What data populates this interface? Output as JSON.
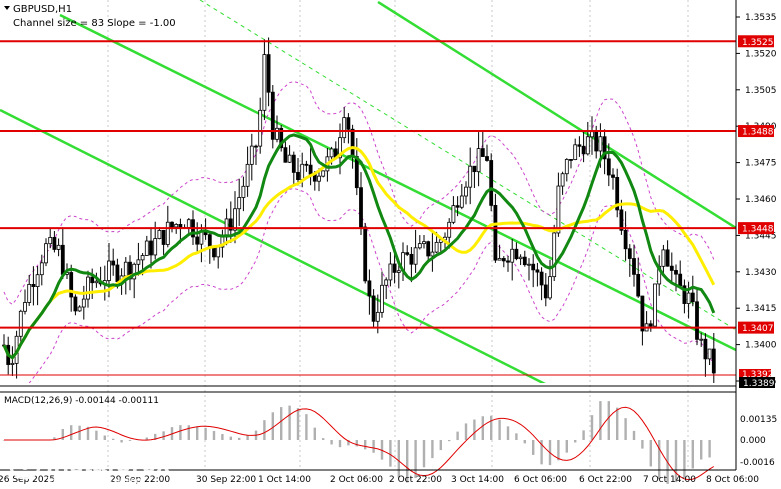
{
  "header": {
    "symbol": "GBPUSD,H1",
    "channel_info": "Channel size = 83 Slope = -1.00"
  },
  "chart_data": {
    "type": "candlestick",
    "symbol": "GBPUSD",
    "timeframe": "H1",
    "price_range": [
      1.3378,
      1.3545
    ],
    "price_ticks": [
      1.3535,
      1.352,
      1.3505,
      1.349,
      1.3475,
      1.346,
      1.3445,
      1.343,
      1.3415,
      1.34,
      1.3385
    ],
    "time_ticks": [
      "26 Sep 2025",
      "29 Sep 22:00",
      "30 Sep 22:00",
      "1 Oct 14:00",
      "2 Oct 06:00",
      "2 Oct 22:00",
      "3 Oct 14:00",
      "6 Oct 06:00",
      "6 Oct 22:00",
      "7 Oct 14:00",
      "8 Oct 06:00"
    ],
    "levels": [
      {
        "label": "1.3525",
        "value": 1.3525,
        "color": "#e00000"
      },
      {
        "label": "1.3488",
        "value": 1.3488,
        "color": "#e00000"
      },
      {
        "label": "1.3448",
        "value": 1.3448,
        "color": "#e00000"
      },
      {
        "label": "1.3407",
        "value": 1.3407,
        "color": "#e00000"
      }
    ],
    "current": {
      "bid": "1.3389",
      "ask": "1.3392"
    },
    "macd": {
      "label": "MACD(12,26,9) -0.00144 -0.00111",
      "ticks": [
        "0.00135",
        "0.000",
        "-0.0016"
      ]
    }
  },
  "watermark": {
    "brand": "instaforex",
    "tagline": "Instant Forex Trading"
  }
}
